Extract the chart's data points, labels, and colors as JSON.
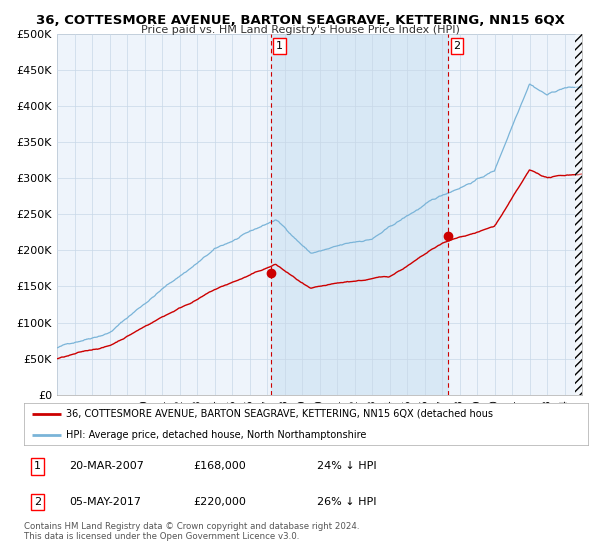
{
  "title": "36, COTTESMORE AVENUE, BARTON SEAGRAVE, KETTERING, NN15 6QX",
  "subtitle": "Price paid vs. HM Land Registry's House Price Index (HPI)",
  "ylim": [
    0,
    500000
  ],
  "yticks": [
    0,
    50000,
    100000,
    150000,
    200000,
    250000,
    300000,
    350000,
    400000,
    450000,
    500000
  ],
  "ytick_labels": [
    "£0",
    "£50K",
    "£100K",
    "£150K",
    "£200K",
    "£250K",
    "£300K",
    "£350K",
    "£400K",
    "£450K",
    "£500K"
  ],
  "hpi_color": "#7ab4d8",
  "price_color": "#cc0000",
  "marker_color": "#cc0000",
  "background_color": "#ffffff",
  "plot_bg_color": "#eef4fb",
  "shade_color": "#d8e8f5",
  "grid_color": "#c8d8e8",
  "dashed_line_color": "#cc0000",
  "purchase1_year": 2007.22,
  "purchase1_price": 168000,
  "purchase2_year": 2017.35,
  "purchase2_price": 220000,
  "legend_entries": [
    "36, COTTESMORE AVENUE, BARTON SEAGRAVE, KETTERING, NN15 6QX (detached hous",
    "HPI: Average price, detached house, North Northamptonshire"
  ],
  "table_rows": [
    [
      "1",
      "20-MAR-2007",
      "£168,000",
      "24% ↓ HPI"
    ],
    [
      "2",
      "05-MAY-2017",
      "£220,000",
      "26% ↓ HPI"
    ]
  ],
  "footnote": "Contains HM Land Registry data © Crown copyright and database right 2024.\nThis data is licensed under the Open Government Licence v3.0.",
  "xstart": 1995,
  "xend": 2025
}
